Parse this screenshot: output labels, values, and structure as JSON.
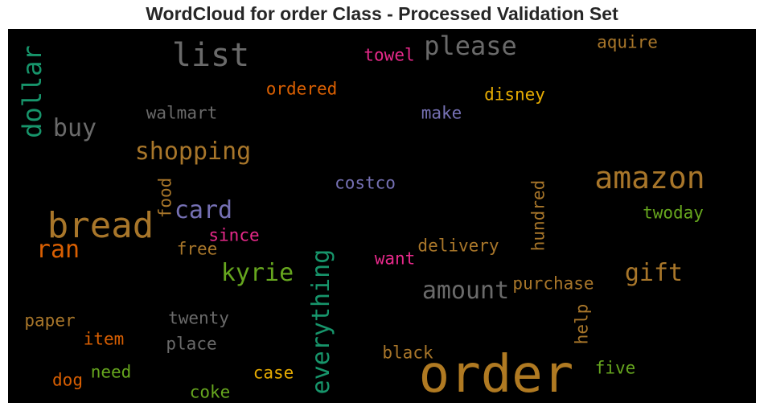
{
  "chart_data": {
    "type": "wordcloud",
    "title": "WordCloud for order Class - Processed Validation Set",
    "background": "#000000",
    "words": [
      {
        "text": "order",
        "color": "#b07a22"
      },
      {
        "text": "bread",
        "color": "#a8762a"
      },
      {
        "text": "amazon",
        "color": "#a8762a"
      },
      {
        "text": "list",
        "color": "#6a6a6a"
      },
      {
        "text": "please",
        "color": "#6a6a6a"
      },
      {
        "text": "dollar",
        "color": "#17956b"
      },
      {
        "text": "everything",
        "color": "#17956b"
      },
      {
        "text": "card",
        "color": "#7570b3"
      },
      {
        "text": "kyrie",
        "color": "#66a61e"
      },
      {
        "text": "buy",
        "color": "#6a6a6a"
      },
      {
        "text": "shopping",
        "color": "#a8762a"
      },
      {
        "text": "amount",
        "color": "#6a6a6a"
      },
      {
        "text": "gift",
        "color": "#a8762a"
      },
      {
        "text": "ran",
        "color": "#d95f02"
      },
      {
        "text": "towel",
        "color": "#e7298a"
      },
      {
        "text": "aquire",
        "color": "#a8762a"
      },
      {
        "text": "ordered",
        "color": "#d95f02"
      },
      {
        "text": "walmart",
        "color": "#6a6a6a"
      },
      {
        "text": "make",
        "color": "#7570b3"
      },
      {
        "text": "disney",
        "color": "#e6ab02"
      },
      {
        "text": "costco",
        "color": "#7570b3"
      },
      {
        "text": "food",
        "color": "#a8762a"
      },
      {
        "text": "hundred",
        "color": "#a8762a"
      },
      {
        "text": "twoday",
        "color": "#66a61e"
      },
      {
        "text": "since",
        "color": "#e7298a"
      },
      {
        "text": "free",
        "color": "#a8762a"
      },
      {
        "text": "delivery",
        "color": "#a8762a"
      },
      {
        "text": "want",
        "color": "#e7298a"
      },
      {
        "text": "purchase",
        "color": "#a8762a"
      },
      {
        "text": "help",
        "color": "#a8762a"
      },
      {
        "text": "twenty",
        "color": "#6a6a6a"
      },
      {
        "text": "paper",
        "color": "#a8762a"
      },
      {
        "text": "item",
        "color": "#d95f02"
      },
      {
        "text": "place",
        "color": "#6a6a6a"
      },
      {
        "text": "black",
        "color": "#a8762a"
      },
      {
        "text": "need",
        "color": "#66a61e"
      },
      {
        "text": "dog",
        "color": "#d95f02"
      },
      {
        "text": "case",
        "color": "#e6ab02"
      },
      {
        "text": "five",
        "color": "#66a61e"
      },
      {
        "text": "coke",
        "color": "#66a61e"
      }
    ]
  }
}
